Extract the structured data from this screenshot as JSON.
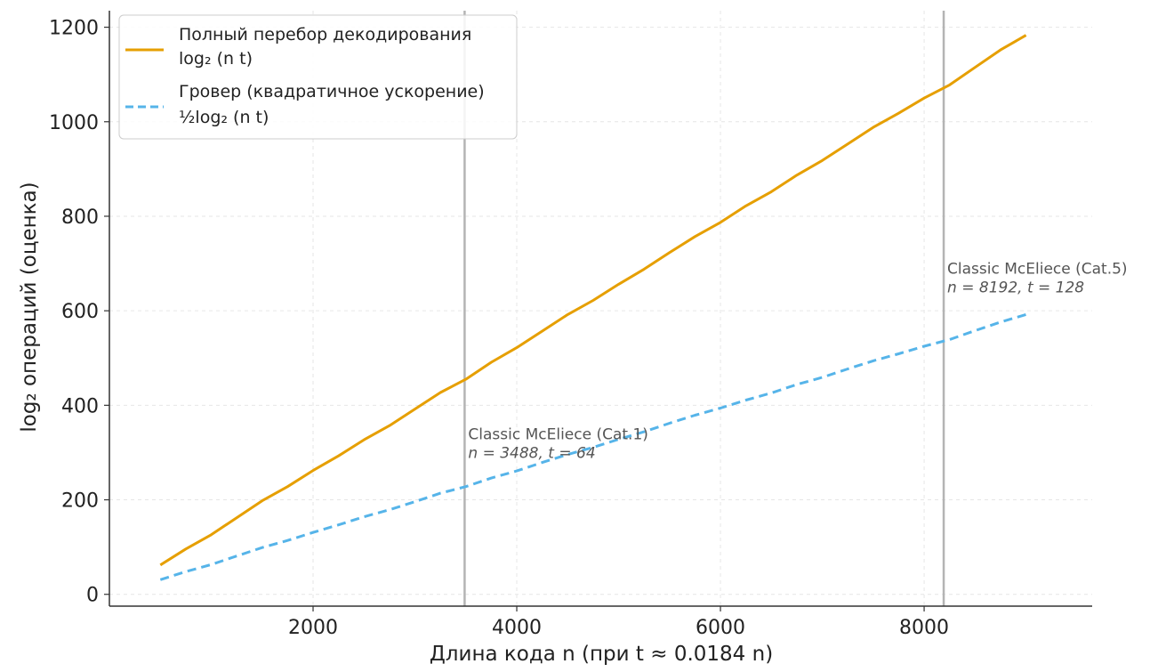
{
  "chart_data": {
    "type": "line",
    "xlabel": "Длина кода n (при t ≈ 0.0184 n)",
    "ylabel": "log₂ операций (оценка)",
    "xlim": [
      0,
      9650
    ],
    "ylim": [
      -25,
      1235
    ],
    "xticks": [
      2000,
      4000,
      6000,
      8000
    ],
    "yticks": [
      0,
      200,
      400,
      600,
      800,
      1000,
      1200
    ],
    "grid": true,
    "legend_position": "top-left",
    "x": [
      500,
      750,
      1000,
      1250,
      1500,
      1750,
      2000,
      2250,
      2500,
      2750,
      3000,
      3250,
      3500,
      3750,
      4000,
      4250,
      4500,
      4750,
      5000,
      5250,
      5500,
      5750,
      6000,
      6250,
      6500,
      6750,
      7000,
      7250,
      7500,
      7750,
      8000,
      8250,
      8500,
      8750,
      9000
    ],
    "series": [
      {
        "name": "Полный перебор декодирования",
        "formula": "log₂ (n t)",
        "color": "#E69F00",
        "style": "solid",
        "values": [
          62,
          96,
          126,
          162,
          198,
          228,
          262,
          293,
          327,
          357,
          392,
          427,
          455,
          491,
          522,
          557,
          592,
          622,
          656,
          688,
          723,
          757,
          787,
          822,
          852,
          887,
          918,
          953,
          988,
          1018,
          1050,
          1078,
          1115,
          1152,
          1183
        ]
      },
      {
        "name": "Гровер (квадратичное ускорение)",
        "formula": "½log₂ (n t)",
        "color": "#56B4E9",
        "style": "dashed",
        "values": [
          31,
          48,
          63,
          81,
          99,
          114,
          131,
          147,
          164,
          179,
          196,
          214,
          228,
          246,
          261,
          279,
          296,
          311,
          328,
          344,
          362,
          379,
          394,
          411,
          426,
          444,
          459,
          477,
          494,
          509,
          525,
          539,
          558,
          576,
          592
        ]
      }
    ],
    "vlines": [
      {
        "x": 3488,
        "label_line1": "Classic McEliece (Cat.1)",
        "label_line2": "n = 3488, t = 64",
        "label_y": 300
      },
      {
        "x": 8192,
        "label_line1": "Classic McEliece (Cat.5)",
        "label_line2": "n = 8192, t = 128",
        "label_y": 650
      }
    ],
    "vline_color": "#b4b4b4",
    "grid_color": "#e6e6e6"
  }
}
